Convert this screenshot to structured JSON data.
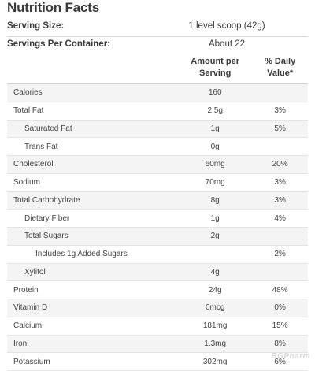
{
  "title": "Nutrition Facts",
  "serving_size": {
    "label": "Serving Size:",
    "value": "1 level scoop (42g)"
  },
  "servings_per_container": {
    "label": "Servings Per Container:",
    "value": "About 22"
  },
  "headers": {
    "amount": "Amount per Serving",
    "dv": "% Daily Value*"
  },
  "rows": [
    {
      "name": "Calories",
      "amount": "160",
      "dv": "",
      "indent": 0
    },
    {
      "name": "Total Fat",
      "amount": "2.5g",
      "dv": "3%",
      "indent": 0
    },
    {
      "name": "Saturated Fat",
      "amount": "1g",
      "dv": "5%",
      "indent": 1
    },
    {
      "name": "Trans Fat",
      "amount": "0g",
      "dv": "",
      "indent": 1
    },
    {
      "name": "Cholesterol",
      "amount": "60mg",
      "dv": "20%",
      "indent": 0
    },
    {
      "name": "Sodium",
      "amount": "70mg",
      "dv": "3%",
      "indent": 0
    },
    {
      "name": "Total Carbohydrate",
      "amount": "8g",
      "dv": "3%",
      "indent": 0
    },
    {
      "name": "Dietary Fiber",
      "amount": "1g",
      "dv": "4%",
      "indent": 1
    },
    {
      "name": "Total Sugars",
      "amount": "2g",
      "dv": "",
      "indent": 1
    },
    {
      "name": "Includes 1g Added Sugars",
      "amount": "",
      "dv": "2%",
      "indent": 2
    },
    {
      "name": "Xylitol",
      "amount": "4g",
      "dv": "",
      "indent": 1
    },
    {
      "name": "Protein",
      "amount": "24g",
      "dv": "48%",
      "indent": 0
    },
    {
      "name": "Vitamin D",
      "amount": "0mcg",
      "dv": "0%",
      "indent": 0
    },
    {
      "name": "Calcium",
      "amount": "181mg",
      "dv": "15%",
      "indent": 0
    },
    {
      "name": "Iron",
      "amount": "1.3mg",
      "dv": "8%",
      "indent": 0
    },
    {
      "name": "Potassium",
      "amount": "302mg",
      "dv": "6%",
      "indent": 0
    }
  ],
  "watermark": "BGPharm"
}
